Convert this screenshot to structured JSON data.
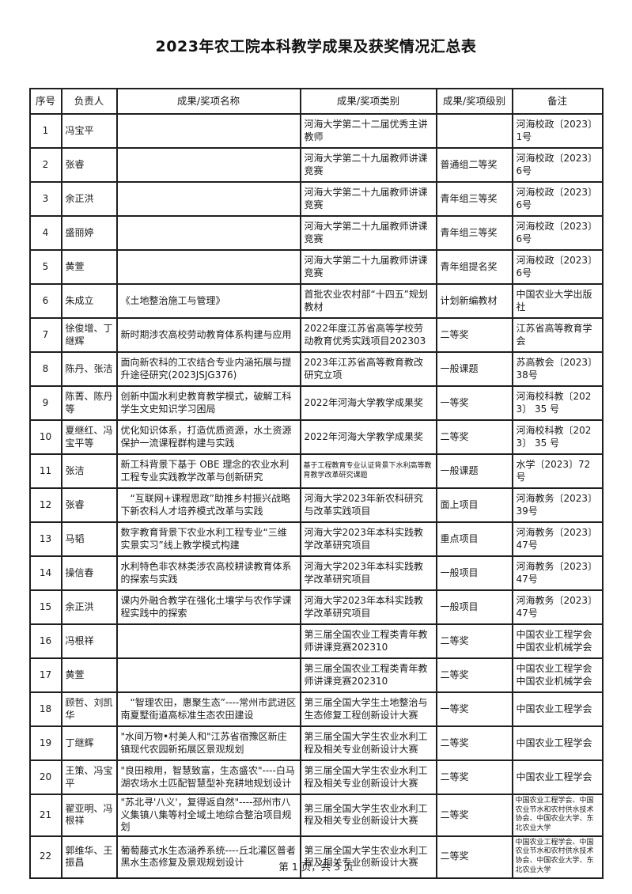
{
  "page": {
    "title": "2023年农工院本科教学成果及获奖情况汇总表",
    "footer": "第 1 页，共 3 页"
  },
  "table": {
    "headers": [
      "序号",
      "负责人",
      "成果/奖项名称",
      "成果/奖项类别",
      "成果/奖项级别",
      "备注"
    ],
    "rows": [
      {
        "no": "1",
        "person": "冯宝平",
        "name": "",
        "category": "河海大学第二十二届优秀主讲教师",
        "level": "",
        "note": "河海校政〔2023〕1号"
      },
      {
        "no": "2",
        "person": "张睿",
        "name": "",
        "category": "河海大学第二十九届教师讲课竞赛",
        "level": "普通组二等奖",
        "note": "河海校政〔2023〕6号"
      },
      {
        "no": "3",
        "person": "余正洪",
        "name": "",
        "category": "河海大学第二十九届教师讲课竞赛",
        "level": "青年组三等奖",
        "note": "河海校政〔2023〕6号"
      },
      {
        "no": "4",
        "person": "盛丽婷",
        "name": "",
        "category": "河海大学第二十九届教师讲课竞赛",
        "level": "青年组三等奖",
        "note": "河海校政〔2023〕6号"
      },
      {
        "no": "5",
        "person": "黄萱",
        "name": "",
        "category": "河海大学第二十九届教师讲课竞赛",
        "level": "青年组提名奖",
        "note": "河海校政〔2023〕6号"
      },
      {
        "no": "6",
        "person": "朱成立",
        "name": "《土地整治施工与管理》",
        "category": "首批农业农村部“十四五”规划教材",
        "level": "计划新编教材",
        "note": "中国农业大学出版社"
      },
      {
        "no": "7",
        "person": "徐俊增、丁继辉",
        "name": "新时期涉农高校劳动教育体系构建与应用",
        "category": "2022年度江苏省高等学校劳动教育优秀实践项目202303",
        "level": "二等奖",
        "note": "江苏省高等教育学会"
      },
      {
        "no": "8",
        "person": "陈丹、张洁",
        "name": "面向新农科的工农结合专业内涵拓展与提升途径研究(2023JSJG376)",
        "category": "2023年江苏省高等教育教改研究立项",
        "level": "一般课题",
        "note": "苏高教会〔2023〕38号"
      },
      {
        "no": "9",
        "person": "陈菁、陈丹等",
        "name": "创新中国水利史教育教学模式，破解工科学生文史知识学习困局",
        "category": "2022年河海大学教学成果奖",
        "level": "一等奖",
        "note": "河海校科教〔2023〕 35 号"
      },
      {
        "no": "10",
        "person": "夏继红、冯宝平等",
        "name": "优化知识体系，打造优质资源，水土资源保护一流课程群构建与实践",
        "category": "2022年河海大学教学成果奖",
        "level": "二等奖",
        "note": "河海校科教〔2023〕 35 号"
      },
      {
        "no": "11",
        "person": "张洁",
        "name": "新工科背景下基于 OBE 理念的农业水利工程专业实践教学改革与创新研究",
        "category": "基于工程教育专业认证背景下水利高等教育教学改革研究课题",
        "level": "一般课题",
        "note": "水学〔2023〕72 号"
      },
      {
        "no": "12",
        "person": "张睿",
        "name": "　“互联网+课程思政”助推乡村振兴战略下新农科人才培养模式改革与实践",
        "category": "河海大学2023年新农科研究与改革实践项目",
        "level": "面上项目",
        "note": "河海教务〔2023〕39号"
      },
      {
        "no": "13",
        "person": "马韬",
        "name": "数字教育背景下农业水利工程专业“三维实景实习”线上教学模式构建",
        "category": "河海大学2023年本科实践教学改革研究项目",
        "level": "重点项目",
        "note": "河海教务〔2023〕47号"
      },
      {
        "no": "14",
        "person": "操信春",
        "name": "水利特色非农林类涉农高校耕读教育体系的探索与实践",
        "category": "河海大学2023年本科实践教学改革研究项目",
        "level": "一般项目",
        "note": "河海教务〔2023〕47号"
      },
      {
        "no": "15",
        "person": "余正洪",
        "name": "课内外融合教学在强化土壤学与农作学课程实践中的探索",
        "category": "河海大学2023年本科实践教学改革研究项目",
        "level": "一般项目",
        "note": "河海教务〔2023〕47号"
      },
      {
        "no": "16",
        "person": "冯根祥",
        "name": "",
        "category": "第三届全国农业工程类青年教师讲课竞赛202310",
        "level": "二等奖",
        "note": "中国农业工程学会 中国农业机械学会"
      },
      {
        "no": "17",
        "person": "黄萱",
        "name": "",
        "category": "第三届全国农业工程类青年教师讲课竞赛202310",
        "level": "二等奖",
        "note": "中国农业工程学会 中国农业机械学会"
      },
      {
        "no": "18",
        "person": "顾哲、刘凯华",
        "name": "　“智理农田，惠聚生态”----常州市武进区南夏墅街道高标准生态农田建设",
        "category": "第三届全国大学生土地整治与生态修复工程创新设计大赛",
        "level": "一等奖",
        "note": "中国农业工程学会"
      },
      {
        "no": "19",
        "person": "丁继辉",
        "name": "\"水间万物•村美人和\"江苏省宿豫区新庄镇现代农园新拓展区景观规划",
        "category": "第三届全国大学生农业水利工程及相关专业创新设计大赛",
        "level": "二等奖",
        "note": "中国农业工程学会"
      },
      {
        "no": "20",
        "person": "王策、冯宝平",
        "name": "\"良田粮用，智慧致富，生态盛农\"----白马湖农场水土匹配智慧型补充耕地规划设计",
        "category": "第三届全国大学生农业水利工程及相关专业创新设计大赛",
        "level": "二等奖",
        "note": "中国农业工程学会"
      },
      {
        "no": "21",
        "person": "翟亚明、冯根祥",
        "name": "\"苏北寻'八义'，复得返自然\"----邳州市八义集镇八集等村全域土地综合整治项目规划",
        "category": "第三届全国大学生农业水利工程及相关专业创新设计大赛",
        "level": "二等奖",
        "note": "中国农业工程学会、中国农业节水和农村供水技术协会、中国农业大学、东北农业大学"
      },
      {
        "no": "22",
        "person": "郭维华、王振昌",
        "name": "葡萄藤式水生态涵养系统----丘北灌区普者黑水生态修复及景观规划设计",
        "category": "第三届全国大学生农业水利工程及相关专业创新设计大赛",
        "level": "二等奖",
        "note": "中国农业工程学会、中国农业节水和农村供水技术协会、中国农业大学、东北农业大学"
      }
    ]
  }
}
